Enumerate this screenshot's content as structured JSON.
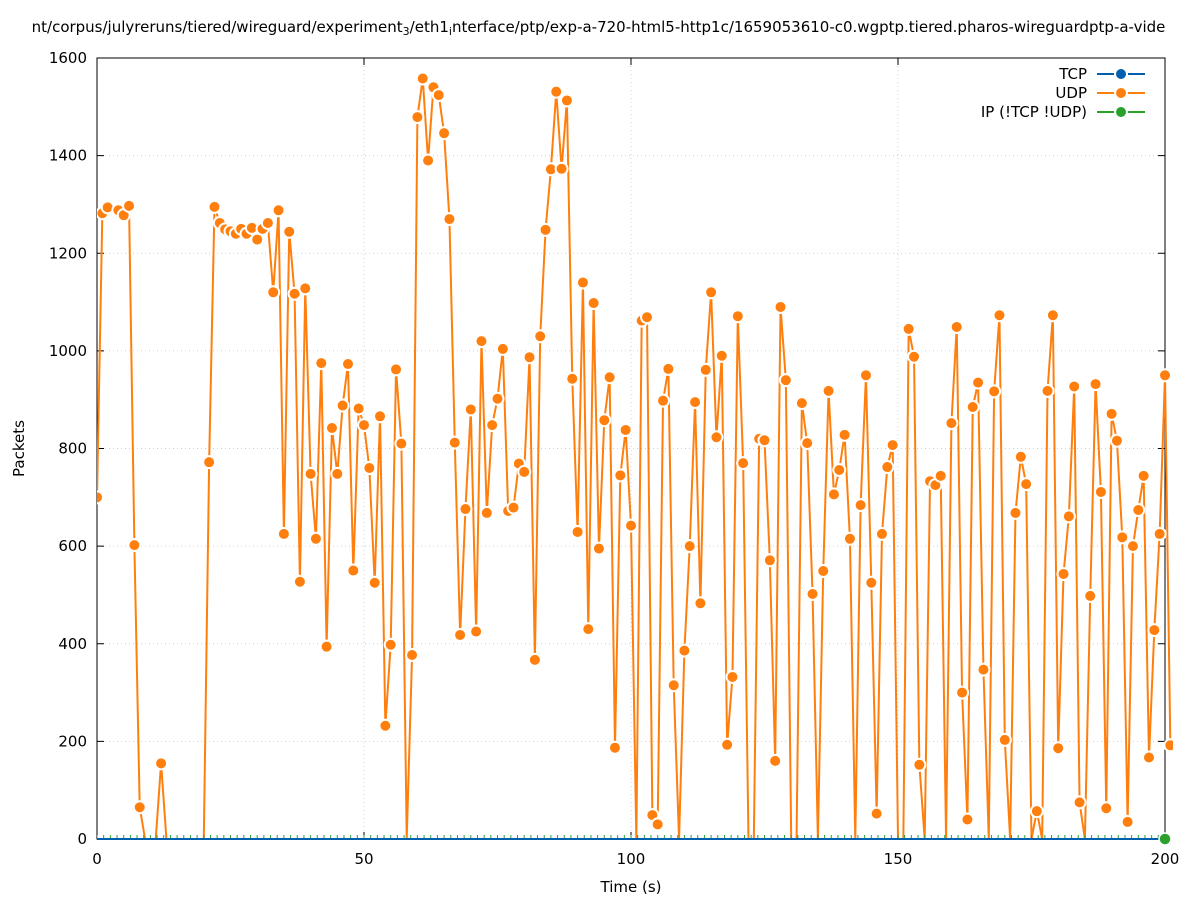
{
  "chart_data": {
    "type": "line",
    "title_parts": [
      "nt/corpus/julyreruns/tiered/wireguard/experiment",
      "3",
      "/eth1",
      "i",
      "nterface/ptp/exp-a-720-html5-http1c/1659053610-c0.wgptp.tiered.pharos-wireguardptp-a-vide"
    ],
    "xlabel": "Time (s)",
    "ylabel": "Packets",
    "xlim": [
      0,
      200
    ],
    "ylim": [
      0,
      1600
    ],
    "x_ticks": [
      0,
      50,
      100,
      150,
      200
    ],
    "y_ticks": [
      0,
      200,
      400,
      600,
      800,
      1000,
      1200,
      1400,
      1600
    ],
    "grid": true,
    "legend_position": "top-right",
    "series": [
      {
        "name": "TCP",
        "color": "#0060ad",
        "points": [
          [
            0,
            0
          ],
          [
            200,
            0
          ]
        ]
      },
      {
        "name": "UDP",
        "color": "#ff7f0e",
        "points": [
          [
            0,
            700
          ],
          [
            1,
            1282
          ],
          [
            2,
            1294
          ],
          [
            4,
            1288
          ],
          [
            5,
            1278
          ],
          [
            6,
            1297
          ],
          [
            7,
            602
          ],
          [
            8,
            65
          ],
          [
            9,
            0
          ],
          [
            10,
            0
          ],
          [
            11,
            0
          ],
          [
            12,
            155
          ],
          [
            13,
            0
          ],
          [
            14,
            0
          ],
          [
            15,
            0
          ],
          [
            16,
            0
          ],
          [
            17,
            0
          ],
          [
            18,
            0
          ],
          [
            19,
            0
          ],
          [
            20,
            0
          ],
          [
            21,
            772
          ],
          [
            22,
            1295
          ],
          [
            23,
            1262
          ],
          [
            24,
            1249
          ],
          [
            25,
            1245
          ],
          [
            26,
            1240
          ],
          [
            27,
            1250
          ],
          [
            28,
            1240
          ],
          [
            29,
            1252
          ],
          [
            30,
            1228
          ],
          [
            31,
            1250
          ],
          [
            32,
            1262
          ],
          [
            33,
            1120
          ],
          [
            34,
            1288
          ],
          [
            35,
            625
          ],
          [
            36,
            1244
          ],
          [
            37,
            1117
          ],
          [
            38,
            527
          ],
          [
            39,
            1128
          ],
          [
            40,
            748
          ],
          [
            41,
            615
          ],
          [
            42,
            975
          ],
          [
            43,
            394
          ],
          [
            44,
            842
          ],
          [
            45,
            748
          ],
          [
            46,
            888
          ],
          [
            47,
            973
          ],
          [
            48,
            550
          ],
          [
            49,
            882
          ],
          [
            50,
            848
          ],
          [
            51,
            760
          ],
          [
            52,
            525
          ],
          [
            53,
            866
          ],
          [
            54,
            232
          ],
          [
            55,
            398
          ],
          [
            56,
            962
          ],
          [
            57,
            810
          ],
          [
            58,
            0
          ],
          [
            59,
            377
          ],
          [
            60,
            1479
          ],
          [
            61,
            1558
          ],
          [
            62,
            1390
          ],
          [
            63,
            1540
          ],
          [
            64,
            1524
          ],
          [
            65,
            1446
          ],
          [
            66,
            1270
          ],
          [
            67,
            812
          ],
          [
            68,
            418
          ],
          [
            69,
            676
          ],
          [
            70,
            880
          ],
          [
            71,
            425
          ],
          [
            72,
            1020
          ],
          [
            73,
            668
          ],
          [
            74,
            848
          ],
          [
            75,
            902
          ],
          [
            76,
            1004
          ],
          [
            77,
            672
          ],
          [
            78,
            679
          ],
          [
            79,
            769
          ],
          [
            80,
            752
          ],
          [
            81,
            987
          ],
          [
            82,
            367
          ],
          [
            83,
            1030
          ],
          [
            84,
            1248
          ],
          [
            85,
            1372
          ],
          [
            86,
            1531
          ],
          [
            87,
            1373
          ],
          [
            88,
            1513
          ],
          [
            89,
            943
          ],
          [
            90,
            629
          ],
          [
            91,
            1140
          ],
          [
            92,
            430
          ],
          [
            93,
            1098
          ],
          [
            94,
            595
          ],
          [
            95,
            858
          ],
          [
            96,
            946
          ],
          [
            97,
            187
          ],
          [
            98,
            745
          ],
          [
            99,
            838
          ],
          [
            100,
            642
          ],
          [
            101,
            0
          ],
          [
            102,
            1062
          ],
          [
            103,
            1069
          ],
          [
            104,
            49
          ],
          [
            105,
            30
          ],
          [
            106,
            898
          ],
          [
            107,
            963
          ],
          [
            108,
            315
          ],
          [
            109,
            0
          ],
          [
            110,
            386
          ],
          [
            111,
            600
          ],
          [
            112,
            895
          ],
          [
            113,
            483
          ],
          [
            114,
            961
          ],
          [
            115,
            1120
          ],
          [
            116,
            823
          ],
          [
            117,
            990
          ],
          [
            118,
            193
          ],
          [
            119,
            332
          ],
          [
            120,
            1071
          ],
          [
            121,
            770
          ],
          [
            122,
            0
          ],
          [
            123,
            0
          ],
          [
            124,
            820
          ],
          [
            125,
            817
          ],
          [
            126,
            571
          ],
          [
            127,
            160
          ],
          [
            128,
            1090
          ],
          [
            129,
            940
          ],
          [
            130,
            0
          ],
          [
            131,
            0
          ],
          [
            132,
            893
          ],
          [
            133,
            811
          ],
          [
            134,
            502
          ],
          [
            135,
            0
          ],
          [
            136,
            549
          ],
          [
            137,
            918
          ],
          [
            138,
            706
          ],
          [
            139,
            756
          ],
          [
            140,
            828
          ],
          [
            141,
            615
          ],
          [
            142,
            0
          ],
          [
            143,
            684
          ],
          [
            144,
            950
          ],
          [
            145,
            525
          ],
          [
            146,
            52
          ],
          [
            147,
            625
          ],
          [
            148,
            762
          ],
          [
            149,
            807
          ],
          [
            150,
            0
          ],
          [
            151,
            0
          ],
          [
            152,
            1045
          ],
          [
            153,
            988
          ],
          [
            154,
            152
          ],
          [
            155,
            0
          ],
          [
            156,
            733
          ],
          [
            157,
            725
          ],
          [
            158,
            744
          ],
          [
            159,
            0
          ],
          [
            160,
            852
          ],
          [
            161,
            1049
          ],
          [
            162,
            300
          ],
          [
            163,
            40
          ],
          [
            164,
            885
          ],
          [
            165,
            935
          ],
          [
            166,
            347
          ],
          [
            167,
            0
          ],
          [
            168,
            917
          ],
          [
            169,
            1073
          ],
          [
            170,
            203
          ],
          [
            171,
            0
          ],
          [
            172,
            668
          ],
          [
            173,
            783
          ],
          [
            174,
            727
          ],
          [
            175,
            0
          ],
          [
            176,
            57
          ],
          [
            177,
            0
          ],
          [
            178,
            918
          ],
          [
            179,
            1073
          ],
          [
            180,
            186
          ],
          [
            181,
            543
          ],
          [
            182,
            661
          ],
          [
            183,
            927
          ],
          [
            184,
            75
          ],
          [
            185,
            0
          ],
          [
            186,
            498
          ],
          [
            187,
            932
          ],
          [
            188,
            711
          ],
          [
            189,
            63
          ],
          [
            190,
            871
          ],
          [
            191,
            816
          ],
          [
            192,
            618
          ],
          [
            193,
            35
          ],
          [
            194,
            600
          ],
          [
            195,
            674
          ],
          [
            196,
            744
          ],
          [
            197,
            167
          ],
          [
            198,
            428
          ],
          [
            199,
            625
          ],
          [
            200,
            950
          ],
          [
            201,
            192
          ]
        ]
      },
      {
        "name": "IP (!TCP  !UDP)",
        "color": "#2ca02c",
        "points": [
          [
            0,
            0
          ],
          [
            200,
            0
          ]
        ]
      }
    ]
  }
}
